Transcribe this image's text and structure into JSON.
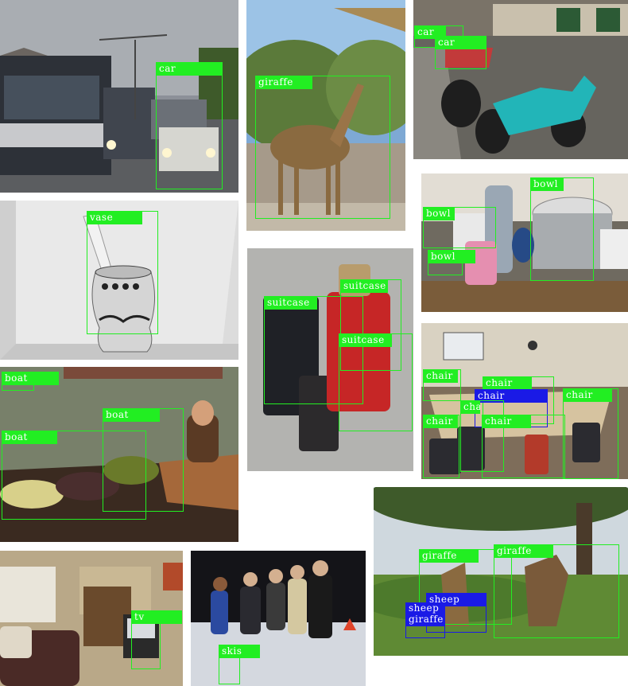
{
  "colors": {
    "box_green": "#22ee22",
    "box_blue": "#1a1ae6",
    "label_text": "#ffffff"
  },
  "panels": {
    "street_bus": {
      "labels": [
        "car"
      ]
    },
    "giraffe_zoo": {
      "labels": [
        "giraffe"
      ]
    },
    "scooters": {
      "labels": [
        "car",
        "car"
      ]
    },
    "vase": {
      "labels": [
        "vase"
      ]
    },
    "luggage": {
      "labels": [
        "suitcase",
        "suitcase",
        "suitcase"
      ]
    },
    "kitchen": {
      "labels": [
        "bowl",
        "bowl",
        "bowl"
      ]
    },
    "boats": {
      "labels": [
        "boat",
        "boat",
        "boat"
      ]
    },
    "classroom": {
      "labels": [
        "chair",
        "chair",
        "chair",
        "chair",
        "chair",
        "chair",
        "chair"
      ]
    },
    "savanna": {
      "labels": [
        "giraffe",
        "giraffe",
        "sheep",
        "sheep",
        "giraffe"
      ]
    },
    "living_room": {
      "labels": [
        "tv"
      ]
    },
    "skiers": {
      "labels": [
        "skis"
      ]
    }
  }
}
